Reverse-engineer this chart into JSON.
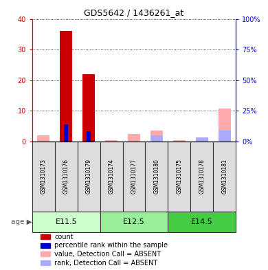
{
  "title": "GDS5642 / 1436261_at",
  "samples": [
    "GSM1310173",
    "GSM1310176",
    "GSM1310179",
    "GSM1310174",
    "GSM1310177",
    "GSM1310180",
    "GSM1310175",
    "GSM1310178",
    "GSM1310181"
  ],
  "age_groups": [
    {
      "label": "E11.5",
      "start": 0,
      "end": 3
    },
    {
      "label": "E12.5",
      "start": 3,
      "end": 6
    },
    {
      "label": "E14.5",
      "start": 6,
      "end": 9
    }
  ],
  "count_values": [
    0,
    36,
    22,
    0,
    0,
    0,
    0,
    0,
    0
  ],
  "percentile_values": [
    0,
    14,
    8,
    0,
    0,
    0,
    0,
    0,
    0
  ],
  "value_absent": [
    5,
    0,
    0,
    1,
    6,
    9,
    1,
    3,
    27
  ],
  "rank_absent": [
    0,
    0,
    0,
    0,
    0,
    5,
    0,
    3,
    9
  ],
  "ylim_left": [
    0,
    40
  ],
  "ylim_right": [
    0,
    100
  ],
  "yticks_left": [
    0,
    10,
    20,
    30,
    40
  ],
  "yticks_right": [
    0,
    25,
    50,
    75,
    100
  ],
  "ytick_labels_left": [
    "0",
    "10",
    "20",
    "30",
    "40"
  ],
  "ytick_labels_right": [
    "0%",
    "25%",
    "50%",
    "75%",
    "100%"
  ],
  "color_count": "#cc0000",
  "color_percentile": "#0000cc",
  "color_value_absent": "#ffaaaa",
  "color_rank_absent": "#aaaaff",
  "color_age_e115": "#ccffcc",
  "color_age_e125": "#99ee99",
  "color_age_e145": "#44cc44",
  "color_age_border": "#333333",
  "color_sample_bg": "#dddddd",
  "bar_width": 0.55,
  "legend_items": [
    {
      "color": "#cc0000",
      "label": "count"
    },
    {
      "color": "#0000cc",
      "label": "percentile rank within the sample"
    },
    {
      "color": "#ffaaaa",
      "label": "value, Detection Call = ABSENT"
    },
    {
      "color": "#aaaaff",
      "label": "rank, Detection Call = ABSENT"
    }
  ]
}
